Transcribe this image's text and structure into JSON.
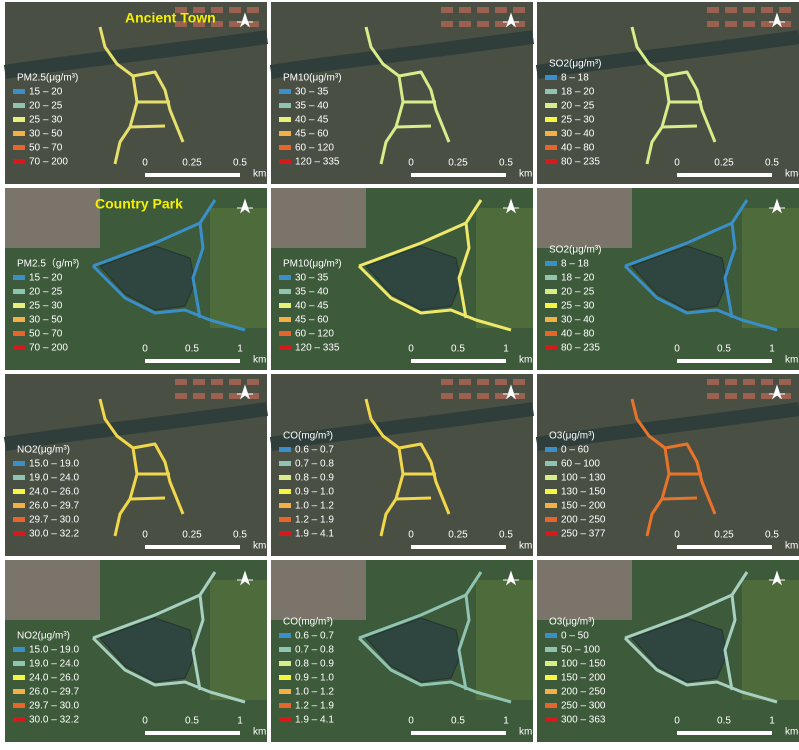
{
  "panels": [
    {
      "title": "Ancient Town",
      "legend_title": "PM2.5(μg/m³)",
      "route_color": "#e6e06a",
      "legend": [
        {
          "label": "15 – 20",
          "color": "#3b8fc9"
        },
        {
          "label": "20 – 25",
          "color": "#8fc4b3"
        },
        {
          "label": "25 – 30",
          "color": "#e6f07a"
        },
        {
          "label": "30 – 50",
          "color": "#f5b045"
        },
        {
          "label": "50 – 70",
          "color": "#e8642a"
        },
        {
          "label": "70 – 200",
          "color": "#d7191c"
        }
      ],
      "scale": [
        "0",
        "0.25",
        "0.5",
        "km"
      ]
    },
    {
      "legend_title": "PM10(μg/m³)",
      "route_color": "#d8ec8a",
      "legend": [
        {
          "label": "30 – 35",
          "color": "#3b8fc9"
        },
        {
          "label": "35 – 40",
          "color": "#8fc4b3"
        },
        {
          "label": "40 – 45",
          "color": "#e6f07a"
        },
        {
          "label": "45 – 60",
          "color": "#f5b045"
        },
        {
          "label": "60 – 120",
          "color": "#e8642a"
        },
        {
          "label": "120 – 335",
          "color": "#d7191c"
        }
      ],
      "scale": [
        "0",
        "0.25",
        "0.5",
        "km"
      ]
    },
    {
      "legend_title": "SO2(μg/m³)",
      "route_color": "#d8ec8a",
      "legend": [
        {
          "label": "8 – 18",
          "color": "#3b8fc9"
        },
        {
          "label": "18 – 20",
          "color": "#8fc4b3"
        },
        {
          "label": "20 – 25",
          "color": "#d8ec8a"
        },
        {
          "label": "25 – 30",
          "color": "#f5f542"
        },
        {
          "label": "30 – 40",
          "color": "#f5b045"
        },
        {
          "label": "40 – 80",
          "color": "#e8642a"
        },
        {
          "label": "80 – 235",
          "color": "#d7191c"
        }
      ],
      "scale": [
        "0",
        "0.25",
        "0.5",
        "km"
      ]
    },
    {
      "title": "Country Park",
      "legend_title": "PM2.5（g/m³)",
      "route_color": "#3b8fc9",
      "legend": [
        {
          "label": "15 – 20",
          "color": "#3b8fc9"
        },
        {
          "label": "20 – 25",
          "color": "#8fc4b3"
        },
        {
          "label": "25 – 30",
          "color": "#e6f07a"
        },
        {
          "label": "30 – 50",
          "color": "#f5b045"
        },
        {
          "label": "50 – 70",
          "color": "#e8642a"
        },
        {
          "label": "70 – 200",
          "color": "#d7191c"
        }
      ],
      "scale": [
        "0",
        "0.5",
        "1",
        "km"
      ]
    },
    {
      "legend_title": "PM10(μg/m³)",
      "route_color": "#f0e86a",
      "legend": [
        {
          "label": "30 – 35",
          "color": "#3b8fc9"
        },
        {
          "label": "35 – 40",
          "color": "#8fc4b3"
        },
        {
          "label": "40 – 45",
          "color": "#e6f07a"
        },
        {
          "label": "45 – 60",
          "color": "#f5b045"
        },
        {
          "label": "60 – 120",
          "color": "#e8642a"
        },
        {
          "label": "120 – 335",
          "color": "#d7191c"
        }
      ],
      "scale": [
        "0",
        "0.5",
        "1",
        "km"
      ]
    },
    {
      "legend_title": "SO2(μg/m³)",
      "route_color": "#3b8fc9",
      "legend": [
        {
          "label": "8 – 18",
          "color": "#3b8fc9"
        },
        {
          "label": "18 – 20",
          "color": "#8fc4b3"
        },
        {
          "label": "20 – 25",
          "color": "#d8ec8a"
        },
        {
          "label": "25 – 30",
          "color": "#f5f542"
        },
        {
          "label": "30 – 40",
          "color": "#f5b045"
        },
        {
          "label": "40 – 80",
          "color": "#e8642a"
        },
        {
          "label": "80 – 235",
          "color": "#d7191c"
        }
      ],
      "scale": [
        "0",
        "0.5",
        "1",
        "km"
      ]
    },
    {
      "legend_title": "NO2(μg/m³)",
      "route_color": "#f0d84a",
      "legend": [
        {
          "label": "15.0 – 19.0",
          "color": "#3b8fc9"
        },
        {
          "label": "19.0 – 24.0",
          "color": "#8fc4b3"
        },
        {
          "label": "24.0 – 26.0",
          "color": "#f5f542"
        },
        {
          "label": "26.0 – 29.7",
          "color": "#f5b045"
        },
        {
          "label": "29.7 – 30.0",
          "color": "#e8642a"
        },
        {
          "label": "30.0 – 32.2",
          "color": "#d7191c"
        }
      ],
      "scale": [
        "0",
        "0.25",
        "0.5",
        "km"
      ]
    },
    {
      "legend_title": "CO(mg/m³)",
      "route_color": "#f0d84a",
      "legend": [
        {
          "label": "0.6 – 0.7",
          "color": "#3b8fc9"
        },
        {
          "label": "0.7 – 0.8",
          "color": "#8fc4b3"
        },
        {
          "label": "0.8 – 0.9",
          "color": "#d8ec8a"
        },
        {
          "label": "0.9 – 1.0",
          "color": "#f5f542"
        },
        {
          "label": "1.0 – 1.2",
          "color": "#f5b045"
        },
        {
          "label": "1.2 – 1.9",
          "color": "#e8642a"
        },
        {
          "label": "1.9 – 4.1",
          "color": "#d7191c"
        }
      ],
      "scale": [
        "0",
        "0.25",
        "0.5",
        "km"
      ]
    },
    {
      "legend_title": "O3(μg/m³)",
      "route_color": "#e8742a",
      "legend": [
        {
          "label": "0 – 60",
          "color": "#3b8fc9"
        },
        {
          "label": "60 – 100",
          "color": "#8fc4b3"
        },
        {
          "label": "100 – 130",
          "color": "#d8ec8a"
        },
        {
          "label": "130 – 150",
          "color": "#f5f542"
        },
        {
          "label": "150 – 200",
          "color": "#f5b045"
        },
        {
          "label": "200 – 250",
          "color": "#e8642a"
        },
        {
          "label": "250 – 377",
          "color": "#d7191c"
        }
      ],
      "scale": [
        "0",
        "0.25",
        "0.5",
        "km"
      ]
    },
    {
      "legend_title": "NO2(μg/m³)",
      "route_color": "#a8d0c0",
      "legend": [
        {
          "label": "15.0 – 19.0",
          "color": "#3b8fc9"
        },
        {
          "label": "19.0 – 24.0",
          "color": "#8fc4b3"
        },
        {
          "label": "24.0 – 26.0",
          "color": "#f5f542"
        },
        {
          "label": "26.0 – 29.7",
          "color": "#f5b045"
        },
        {
          "label": "29.7 – 30.0",
          "color": "#e8642a"
        },
        {
          "label": "30.0 – 32.2",
          "color": "#d7191c"
        }
      ],
      "scale": [
        "0",
        "0.5",
        "1",
        "km"
      ]
    },
    {
      "legend_title": "CO(mg/m³)",
      "route_color": "#8fc4b3",
      "legend": [
        {
          "label": "0.6 – 0.7",
          "color": "#3b8fc9"
        },
        {
          "label": "0.7 – 0.8",
          "color": "#8fc4b3"
        },
        {
          "label": "0.8 – 0.9",
          "color": "#d8ec8a"
        },
        {
          "label": "0.9 – 1.0",
          "color": "#f5f542"
        },
        {
          "label": "1.0 – 1.2",
          "color": "#f5b045"
        },
        {
          "label": "1.2 – 1.9",
          "color": "#e8642a"
        },
        {
          "label": "1.9 – 4.1",
          "color": "#d7191c"
        }
      ],
      "scale": [
        "0",
        "0.5",
        "1",
        "km"
      ]
    },
    {
      "legend_title": "O3(μg/m³)",
      "route_color": "#a8d0c0",
      "legend": [
        {
          "label": "0 – 50",
          "color": "#3b8fc9"
        },
        {
          "label": "50 – 100",
          "color": "#8fc4b3"
        },
        {
          "label": "100 – 150",
          "color": "#d8ec8a"
        },
        {
          "label": "150 – 200",
          "color": "#f5f542"
        },
        {
          "label": "200 – 250",
          "color": "#f5b045"
        },
        {
          "label": "250 – 300",
          "color": "#e8642a"
        },
        {
          "label": "300 – 363",
          "color": "#d7191c"
        }
      ],
      "scale": [
        "0",
        "0.5",
        "1",
        "km"
      ]
    }
  ]
}
